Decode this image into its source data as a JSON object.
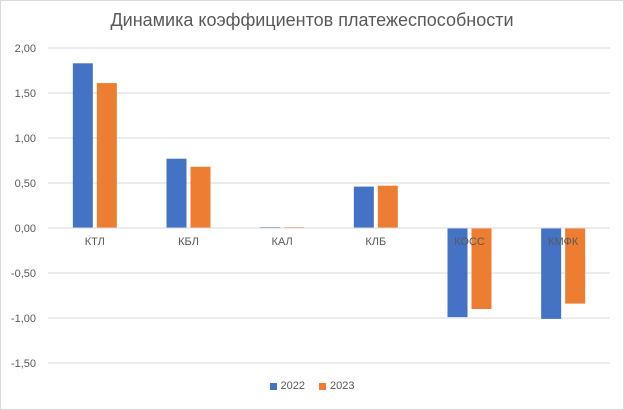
{
  "chart_data": {
    "type": "bar",
    "title": "Динамика коэффициентов платежеспособности",
    "xlabel": "",
    "ylabel": "",
    "categories": [
      "КТЛ",
      "КБЛ",
      "КАЛ",
      "КЛБ",
      "КОСС",
      "КМФК"
    ],
    "series": [
      {
        "name": "2022",
        "color": "#4472c4",
        "values": [
          1.83,
          0.77,
          0.01,
          0.46,
          -0.99,
          -1.01
        ]
      },
      {
        "name": "2023",
        "color": "#ed7d31",
        "values": [
          1.61,
          0.68,
          0.01,
          0.47,
          -0.9,
          -0.84
        ]
      }
    ],
    "ylim": [
      -1.5,
      2.0
    ],
    "yticks": [
      2.0,
      1.5,
      1.0,
      0.5,
      0.0,
      -0.5,
      -1.0,
      -1.5
    ],
    "ytick_labels": [
      "2,00",
      "1,50",
      "1,00",
      "0,50",
      "0,00",
      "-0,50",
      "-1,00",
      "-1,50"
    ],
    "grid": true,
    "legend_position": "bottom"
  }
}
